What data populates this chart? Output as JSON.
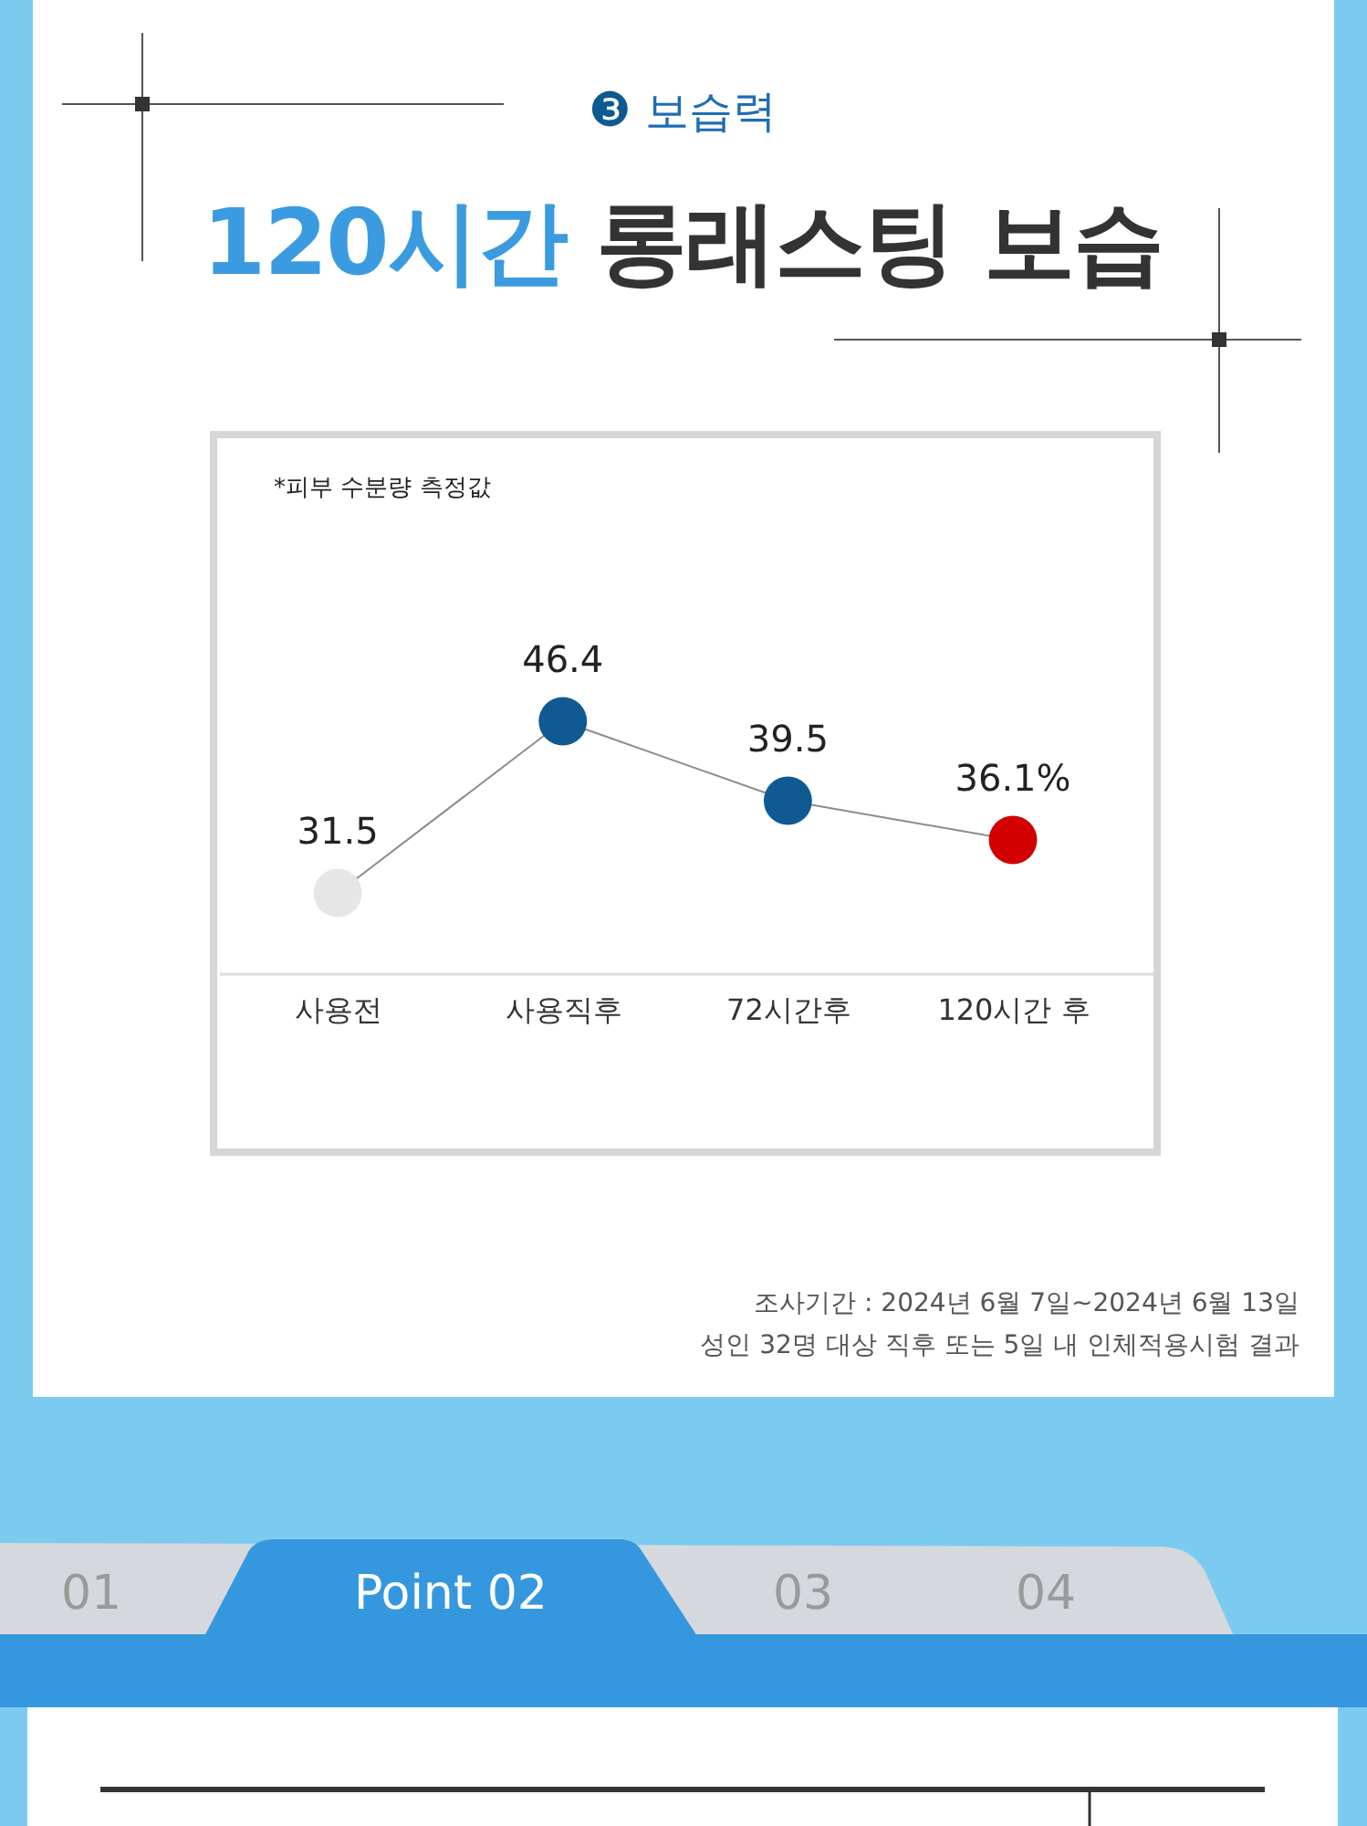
{
  "chart_data": {
    "type": "line",
    "title": "120시간 롱래스팅 보습",
    "subtitle": "❸ 보습력",
    "categories": [
      "사용전",
      "사용직후",
      "72시간후",
      "120시간 후"
    ],
    "values": [
      31.5,
      46.4,
      39.5,
      36.1
    ],
    "value_labels": [
      "31.5",
      "46.4",
      "39.5",
      "36.1%"
    ],
    "color": "#8c8c8c",
    "colors": [
      "#e6e6e6",
      "#0f5a93",
      "#0f5a93",
      "#d30000"
    ],
    "marker": "circle",
    "line_style": "solid",
    "annotations": [
      "*피부 수분량 측정값",
      "조사기간 : 2024년 6월 7일~2024년 6월 13일",
      "성인 32명 대상 직후 또는 5일 내 인체적용시험 결과",
      "01",
      "Point 02",
      "03",
      "04"
    ]
  }
}
